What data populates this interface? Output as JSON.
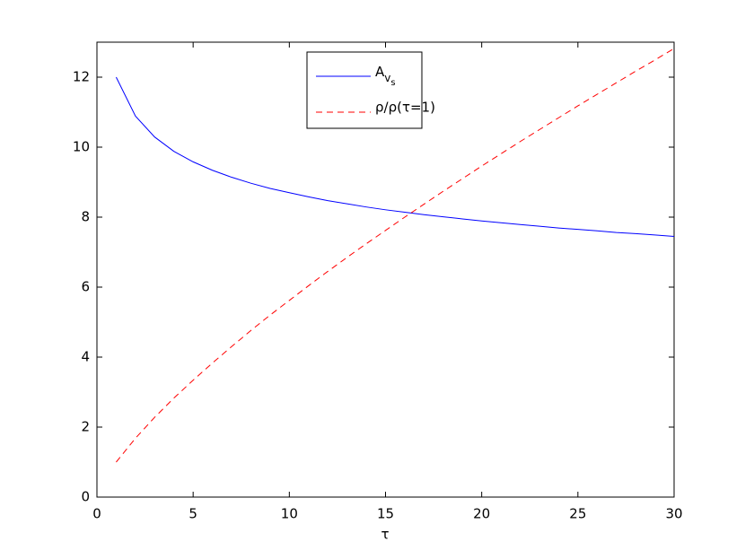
{
  "chart_data": {
    "type": "line",
    "xlabel": "τ",
    "x": [
      1,
      2,
      3,
      4,
      5,
      6,
      7,
      8,
      9,
      10,
      11,
      12,
      13,
      14,
      15,
      16,
      17,
      18,
      19,
      20,
      21,
      22,
      23,
      24,
      25,
      26,
      27,
      28,
      29,
      30
    ],
    "series": [
      {
        "name": "Avs",
        "color": "#0000ff",
        "dash": false,
        "values": [
          12.0,
          10.89,
          10.29,
          9.88,
          9.58,
          9.34,
          9.14,
          8.97,
          8.82,
          8.7,
          8.58,
          8.47,
          8.38,
          8.29,
          8.21,
          8.14,
          8.07,
          8.01,
          7.95,
          7.89,
          7.84,
          7.79,
          7.74,
          7.69,
          7.65,
          7.61,
          7.56,
          7.53,
          7.49,
          7.45
        ]
      },
      {
        "name": "ρ/ρ(τ=1)",
        "color": "#ff0000",
        "dash": true,
        "values": [
          1.0,
          1.68,
          2.28,
          2.83,
          3.34,
          3.83,
          4.3,
          4.76,
          5.2,
          5.62,
          6.04,
          6.45,
          6.85,
          7.24,
          7.62,
          8.0,
          8.37,
          8.74,
          9.1,
          9.46,
          9.81,
          10.16,
          10.5,
          10.84,
          11.18,
          11.51,
          11.84,
          12.17,
          12.49,
          12.82
        ]
      }
    ],
    "xlim": [
      0,
      30
    ],
    "xticks": [
      0,
      5,
      10,
      15,
      20,
      25,
      30
    ],
    "ylim": [
      0,
      13
    ],
    "yticks": [
      0,
      2,
      4,
      6,
      8,
      10,
      12
    ],
    "legend": "top"
  }
}
